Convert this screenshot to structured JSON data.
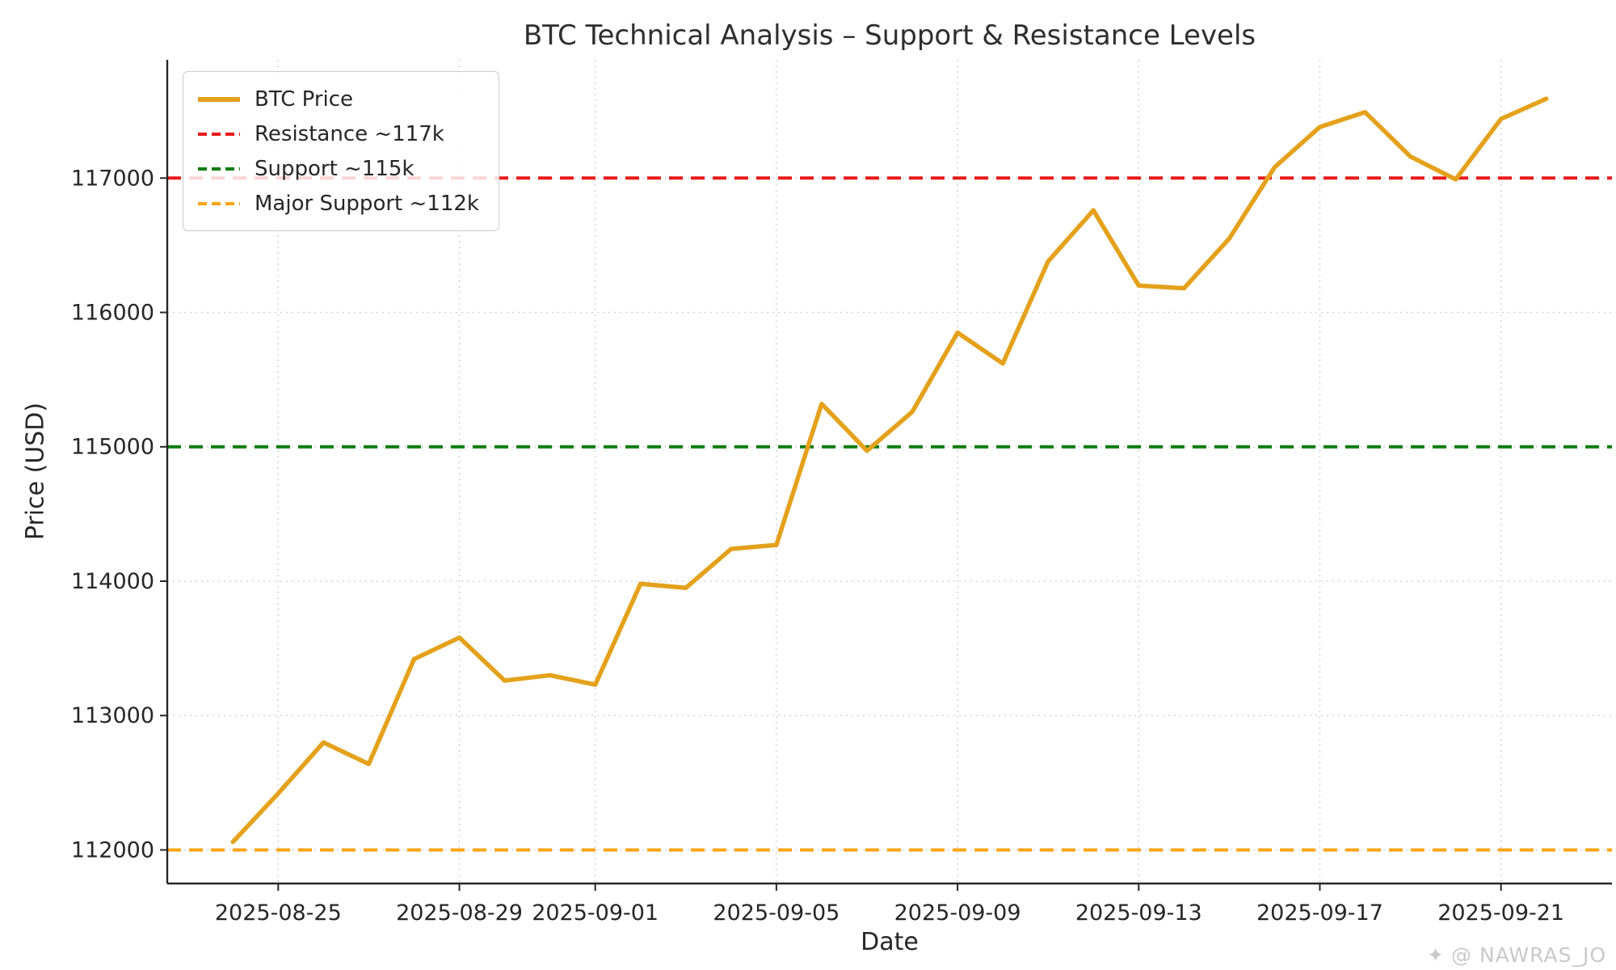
{
  "chart_data": {
    "type": "line",
    "title": "BTC Technical Analysis – Support & Resistance Levels",
    "xlabel": "Date",
    "ylabel": "Price (USD)",
    "x": [
      "2025-08-24",
      "2025-08-25",
      "2025-08-26",
      "2025-08-27",
      "2025-08-28",
      "2025-08-29",
      "2025-08-30",
      "2025-08-31",
      "2025-09-01",
      "2025-09-02",
      "2025-09-03",
      "2025-09-04",
      "2025-09-05",
      "2025-09-06",
      "2025-09-07",
      "2025-09-08",
      "2025-09-09",
      "2025-09-10",
      "2025-09-11",
      "2025-09-12",
      "2025-09-13",
      "2025-09-14",
      "2025-09-15",
      "2025-09-16",
      "2025-09-17",
      "2025-09-18",
      "2025-09-19",
      "2025-09-20",
      "2025-09-21",
      "2025-09-22"
    ],
    "series": [
      {
        "name": "BTC Price",
        "color": "#E4A11B",
        "values": [
          112060,
          112420,
          112800,
          112640,
          113420,
          113580,
          113260,
          113300,
          113230,
          113980,
          113950,
          114240,
          114270,
          115320,
          114970,
          115260,
          115850,
          115620,
          116380,
          116760,
          116200,
          116180,
          116550,
          117080,
          117380,
          117490,
          117160,
          116990,
          117440,
          117590
        ]
      }
    ],
    "hlines": [
      {
        "name": "resistance-line",
        "label": "Resistance ~117k",
        "value": 117000,
        "color": "#E81A1A",
        "style": "dashed"
      },
      {
        "name": "support-line",
        "label": "Support ~115k",
        "value": 115000,
        "color": "#0C7D0C",
        "style": "dashed"
      },
      {
        "name": "major-support-line",
        "label": "Major Support ~112k",
        "value": 112000,
        "color": "#FFA415",
        "style": "dashed"
      }
    ],
    "legend": {
      "position": "upper-left",
      "entries": [
        {
          "label": "BTC Price",
          "color": "#E4A11B",
          "dash": "solid"
        },
        {
          "label": "Resistance ~117k",
          "color": "#E81A1A",
          "dash": "dashed"
        },
        {
          "label": "Support ~115k",
          "color": "#0C7D0C",
          "dash": "dashed"
        },
        {
          "label": "Major Support ~112k",
          "color": "#FFA415",
          "dash": "dashed"
        }
      ]
    },
    "yticks": [
      112000,
      113000,
      114000,
      115000,
      116000,
      117000
    ],
    "xticks": [
      {
        "index": 1,
        "label": "2025-08-25"
      },
      {
        "index": 5,
        "label": "2025-08-29"
      },
      {
        "index": 8,
        "label": "2025-09-01"
      },
      {
        "index": 12,
        "label": "2025-09-05"
      },
      {
        "index": 16,
        "label": "2025-09-09"
      },
      {
        "index": 20,
        "label": "2025-09-13"
      },
      {
        "index": 24,
        "label": "2025-09-17"
      },
      {
        "index": 28,
        "label": "2025-09-21"
      }
    ],
    "ylim": [
      111750,
      117880
    ],
    "xlim": [
      -1.45,
      30.45
    ],
    "grid": true
  },
  "watermark": {
    "icon": "✦",
    "text": "@ NAWRAS_JO"
  }
}
